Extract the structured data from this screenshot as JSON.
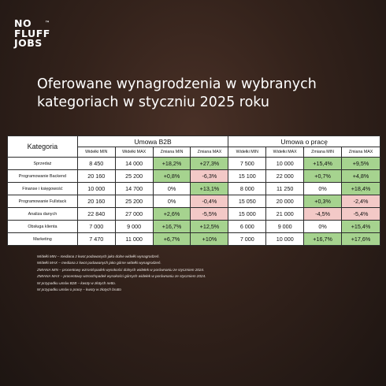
{
  "logo": {
    "lines": [
      "NO",
      "FLUFF",
      "JOBS"
    ],
    "tm": "™"
  },
  "title": {
    "line1": "Oferowane wynagrodzenia w wybranych",
    "line2": "kategoriach w styczniu 2025 roku"
  },
  "table": {
    "category_header": "Kategoria",
    "group_b2b": "Umowa B2B",
    "group_uop": "Umowa o pracę",
    "sub_headers": [
      "Widełki MIN",
      "Widełki MAX",
      "Zmiana MIN",
      "Zmiana MAX",
      "Widełki MIN",
      "Widełki MAX",
      "Zmiana MIN",
      "Zmiana MAX"
    ],
    "rows": [
      {
        "category": "Sprzedaż",
        "cells": [
          "8 450",
          "14 000",
          "+18,2%",
          "+27,3%",
          "7 500",
          "10 000",
          "+15,4%",
          "+9,5%"
        ],
        "tones": [
          "",
          "",
          "pos",
          "pos",
          "",
          "",
          "pos",
          "pos"
        ]
      },
      {
        "category": "Programowanie Backend",
        "cells": [
          "20 160",
          "25 200",
          "+0,8%",
          "-6,3%",
          "15 100",
          "22 000",
          "+0,7%",
          "+4,8%"
        ],
        "tones": [
          "",
          "",
          "pos",
          "neg",
          "",
          "",
          "pos",
          "pos"
        ]
      },
      {
        "category": "Finanse i księgowość",
        "cells": [
          "10 000",
          "14 700",
          "0%",
          "+13,1%",
          "8 000",
          "11 250",
          "0%",
          "+18,4%"
        ],
        "tones": [
          "",
          "",
          "",
          "pos",
          "",
          "",
          "",
          "pos"
        ]
      },
      {
        "category": "Programowanie Fullstack",
        "cells": [
          "20 160",
          "25 200",
          "0%",
          "-0,4%",
          "15 050",
          "20 000",
          "+0,3%",
          "-2,4%"
        ],
        "tones": [
          "",
          "",
          "",
          "neg",
          "",
          "",
          "pos",
          "neg"
        ]
      },
      {
        "category": "Analiza danych",
        "cells": [
          "22 840",
          "27 000",
          "+2,6%",
          "-5,5%",
          "15 000",
          "21 000",
          "-4,5%",
          "-5,4%"
        ],
        "tones": [
          "",
          "",
          "pos",
          "neg",
          "",
          "",
          "neg",
          "neg"
        ]
      },
      {
        "category": "Obsługa klienta",
        "cells": [
          "7 000",
          "9 000",
          "+16,7%",
          "+12,5%",
          "6 000",
          "9 000",
          "0%",
          "+15,4%"
        ],
        "tones": [
          "",
          "",
          "pos",
          "pos",
          "",
          "",
          "",
          "pos"
        ]
      },
      {
        "category": "Marketing",
        "cells": [
          "7 470",
          "11 000",
          "+6,7%",
          "+10%",
          "7 000",
          "10 000",
          "+16,7%",
          "+17,6%"
        ],
        "tones": [
          "",
          "",
          "pos",
          "pos",
          "",
          "",
          "pos",
          "pos"
        ]
      }
    ]
  },
  "notes": [
    "Widełki MIN – mediana z kwot podawanych jako dolne widełki wynagrodzeń.",
    "Widełki MAX – mediana z kwot podawanych jako górne widełki wynagrodzeń.",
    "ZMIANA MIN – procentowy wzrost/spadek wysokości dolnych widełek w porównaniu ze styczniem 2024.",
    "ZMIANA MAX – procentowy wzrost/spadek wysokości górnych widełek w porównaniu ze styczniem 2024.",
    "W przypadku umów B2B – kwoty w złotych netto.",
    "W przypadku umów o pracę – kwoty w złotych brutto"
  ],
  "colors": {
    "background": "#33221b",
    "positive": "#a6d38f",
    "negative": "#f3c9c7"
  }
}
